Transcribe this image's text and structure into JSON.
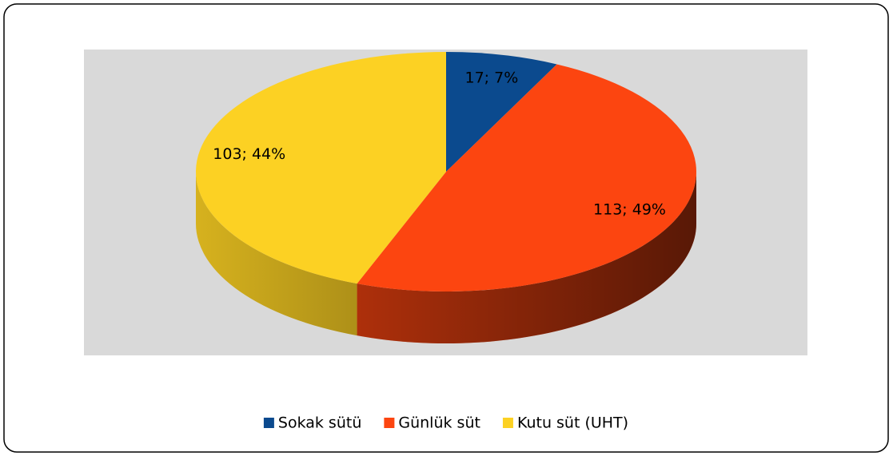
{
  "chart_data": {
    "type": "pie3d",
    "categories": [
      "Sokak sütü",
      "Günlük süt",
      "Kutu süt (UHT)"
    ],
    "values": [
      17,
      113,
      103
    ],
    "value_labels": [
      "17; 7%",
      "113; 49%",
      "103; 44%"
    ],
    "colors": [
      "#0b4a8e",
      "#fc4510",
      "#fcd123"
    ],
    "legend": "bottom"
  }
}
